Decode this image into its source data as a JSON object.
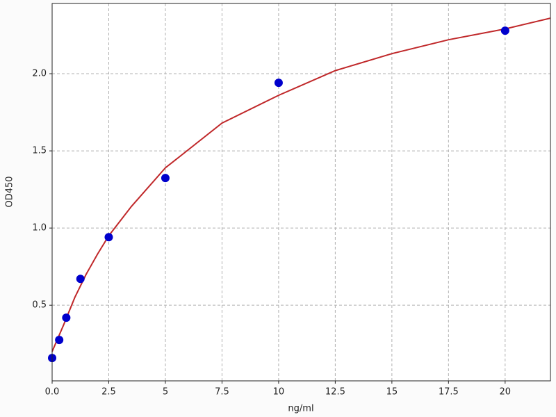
{
  "chart_data": {
    "type": "scatter",
    "xlabel": "ng/ml",
    "ylabel": "OD450",
    "xlim": [
      0,
      22
    ],
    "ylim": [
      0.01,
      2.455
    ],
    "xticks": [
      {
        "value": 0,
        "label": "0.0"
      },
      2.5,
      5,
      7.5,
      10,
      12.5,
      15,
      17.5,
      20
    ],
    "xtick_labels_fix": null,
    "yticks": [
      0.5,
      {
        "value": 1,
        "label": "1.0"
      },
      1.5,
      {
        "value": 2,
        "label": "2.0"
      }
    ],
    "grid": true,
    "series": [
      {
        "type": "scatter",
        "color": "#0000cc",
        "x": [
          0,
          0.3125,
          0.625,
          1.25,
          2.5,
          5,
          10,
          20
        ],
        "values": [
          0.158,
          0.275,
          0.419,
          0.671,
          0.941,
          1.324,
          1.941,
          2.279
        ]
      },
      {
        "type": "line",
        "color": "#c0282a",
        "x": [
          0,
          0.5,
          1,
          1.5,
          2,
          2.5,
          3.5,
          5,
          7.5,
          10,
          12.5,
          15,
          17.5,
          20,
          22
        ],
        "values": [
          0.2,
          0.37,
          0.55,
          0.7,
          0.83,
          0.95,
          1.14,
          1.39,
          1.68,
          1.86,
          2.02,
          2.13,
          2.22,
          2.29,
          2.36
        ]
      }
    ]
  }
}
